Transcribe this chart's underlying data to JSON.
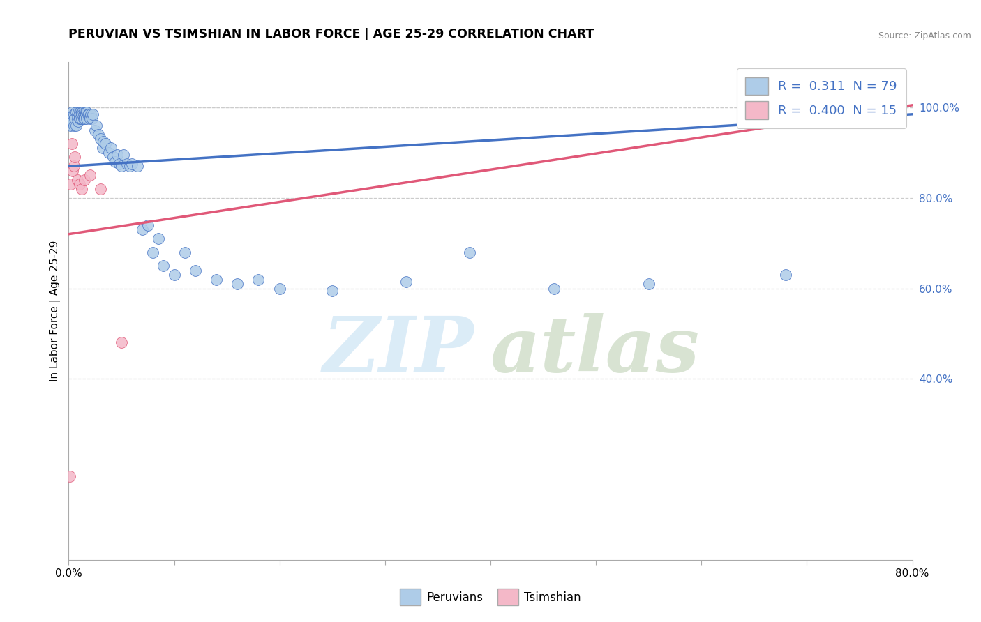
{
  "title": "PERUVIAN VS TSIMSHIAN IN LABOR FORCE | AGE 25-29 CORRELATION CHART",
  "source": "Source: ZipAtlas.com",
  "ylabel": "In Labor Force | Age 25-29",
  "xlim": [
    0.0,
    0.8
  ],
  "ylim": [
    0.0,
    1.1
  ],
  "xticks": [
    0.0,
    0.1,
    0.2,
    0.3,
    0.4,
    0.5,
    0.6,
    0.7,
    0.8
  ],
  "xticklabels": [
    "0.0%",
    "",
    "",
    "",
    "",
    "",
    "",
    "",
    "80.0%"
  ],
  "yticks_right": [
    0.4,
    0.6,
    0.8,
    1.0
  ],
  "yticklabels_right": [
    "40.0%",
    "60.0%",
    "80.0%",
    "100.0%"
  ],
  "legend_blue_label": "R =  0.311  N = 79",
  "legend_pink_label": "R =  0.400  N = 15",
  "legend_blue_color": "#aecce8",
  "legend_pink_color": "#f4b8c8",
  "dot_blue_color": "#aecce8",
  "dot_pink_color": "#f4b8c8",
  "line_blue_color": "#4472c4",
  "line_pink_color": "#e05878",
  "peruvian_x": [
    0.001,
    0.002,
    0.002,
    0.003,
    0.003,
    0.004,
    0.005,
    0.005,
    0.006,
    0.007,
    0.007,
    0.008,
    0.008,
    0.009,
    0.009,
    0.01,
    0.01,
    0.01,
    0.011,
    0.011,
    0.011,
    0.012,
    0.012,
    0.012,
    0.013,
    0.013,
    0.014,
    0.014,
    0.015,
    0.015,
    0.015,
    0.016,
    0.016,
    0.017,
    0.017,
    0.018,
    0.019,
    0.02,
    0.02,
    0.021,
    0.022,
    0.023,
    0.025,
    0.026,
    0.028,
    0.03,
    0.032,
    0.033,
    0.035,
    0.038,
    0.04,
    0.042,
    0.044,
    0.046,
    0.048,
    0.05,
    0.052,
    0.055,
    0.058,
    0.06,
    0.065,
    0.07,
    0.075,
    0.08,
    0.085,
    0.09,
    0.1,
    0.11,
    0.12,
    0.14,
    0.16,
    0.18,
    0.2,
    0.25,
    0.32,
    0.38,
    0.46,
    0.55,
    0.68
  ],
  "peruvian_y": [
    0.98,
    0.97,
    0.96,
    0.99,
    0.98,
    0.97,
    0.985,
    0.96,
    0.975,
    0.99,
    0.96,
    0.985,
    0.975,
    0.99,
    0.97,
    0.99,
    0.98,
    0.975,
    0.99,
    0.985,
    0.975,
    0.99,
    0.985,
    0.975,
    0.99,
    0.985,
    0.985,
    0.975,
    0.99,
    0.98,
    0.975,
    0.99,
    0.985,
    0.99,
    0.975,
    0.985,
    0.985,
    0.98,
    0.975,
    0.985,
    0.975,
    0.985,
    0.95,
    0.96,
    0.94,
    0.93,
    0.91,
    0.925,
    0.92,
    0.9,
    0.91,
    0.89,
    0.88,
    0.895,
    0.875,
    0.87,
    0.895,
    0.875,
    0.87,
    0.875,
    0.87,
    0.73,
    0.74,
    0.68,
    0.71,
    0.65,
    0.63,
    0.68,
    0.64,
    0.62,
    0.61,
    0.62,
    0.6,
    0.595,
    0.615,
    0.68,
    0.6,
    0.61,
    0.63
  ],
  "tsimshian_x": [
    0.001,
    0.002,
    0.003,
    0.004,
    0.005,
    0.006,
    0.008,
    0.01,
    0.012,
    0.015,
    0.02,
    0.03,
    0.05,
    0.65,
    0.7
  ],
  "tsimshian_y": [
    0.185,
    0.83,
    0.92,
    0.86,
    0.87,
    0.89,
    0.84,
    0.83,
    0.82,
    0.84,
    0.85,
    0.82,
    0.48,
    0.99,
    0.995
  ],
  "blue_line_x0": 0.0,
  "blue_line_x1": 0.8,
  "blue_line_y0": 0.87,
  "blue_line_y1": 0.985,
  "pink_line_x0": 0.0,
  "pink_line_x1": 0.8,
  "pink_line_y0": 0.72,
  "pink_line_y1": 1.005
}
